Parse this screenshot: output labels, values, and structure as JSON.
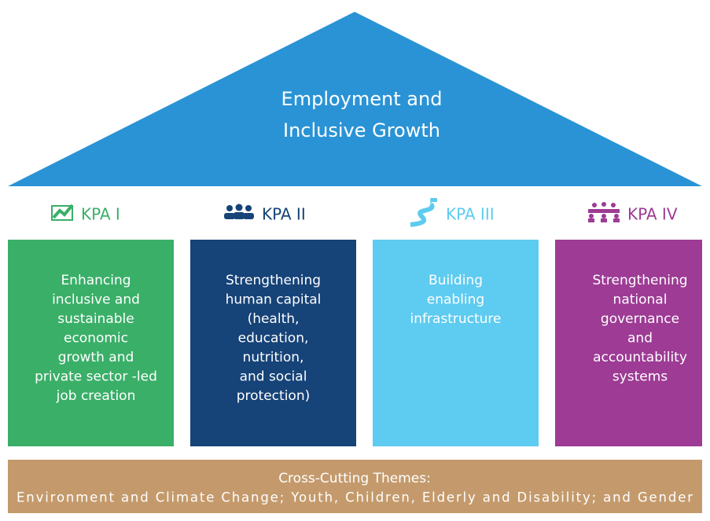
{
  "roof": {
    "lines": [
      "Employment and",
      "Inclusive Growth"
    ]
  },
  "kpas": [
    {
      "label": "KPA I",
      "lines": [
        "Enhancing",
        "inclusive and",
        "sustainable",
        "economic",
        "growth and",
        "private sector -led",
        "job creation"
      ]
    },
    {
      "label": "KPA II",
      "lines": [
        "Strengthening",
        "human capital",
        "(health,",
        "education,",
        "nutrition,",
        "and social",
        "protection)"
      ]
    },
    {
      "label": "KPA III",
      "lines": [
        "Building",
        "enabling",
        "infrastructure"
      ]
    },
    {
      "label": "KPA IV",
      "lines": [
        "Strengthening",
        "national",
        "governance",
        "and",
        "accountability",
        "systems"
      ]
    }
  ],
  "themes": {
    "lines": [
      "Cross-Cutting Themes:",
      "Environment and Climate Change; Youth, Children, Elderly and Disability; and Gender"
    ]
  }
}
